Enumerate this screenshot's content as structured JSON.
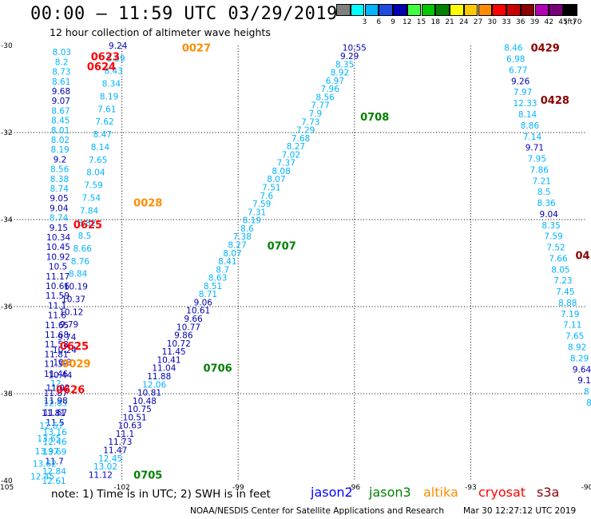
{
  "header": {
    "title": "00:00 – 11:59 UTC 03/29/2019",
    "subtitle": "12 hour collection of altimeter wave heights"
  },
  "legend": {
    "unit": "(ft)",
    "levels": [
      {
        "label": "",
        "color": "#808080"
      },
      {
        "label": "3",
        "color": "#00ffff"
      },
      {
        "label": "6",
        "color": "#00b4ff"
      },
      {
        "label": "9",
        "color": "#1c4ce0"
      },
      {
        "label": "12",
        "color": "#0000b4"
      },
      {
        "label": "15",
        "color": "#40ff40"
      },
      {
        "label": "18",
        "color": "#00c800"
      },
      {
        "label": "21",
        "color": "#008000"
      },
      {
        "label": "24",
        "color": "#ffff00"
      },
      {
        "label": "27",
        "color": "#ffc800"
      },
      {
        "label": "30",
        "color": "#ff8c00"
      },
      {
        "label": "33",
        "color": "#ff0000"
      },
      {
        "label": "36",
        "color": "#c80000"
      },
      {
        "label": "39",
        "color": "#8c0000"
      },
      {
        "label": "42",
        "color": "#b400b4"
      },
      {
        "label": "45",
        "color": "#780078"
      },
      {
        "label": "70",
        "color": "#000000"
      }
    ]
  },
  "map": {
    "lon_ticks": [
      "-105",
      "-102",
      "-99",
      "-96",
      "-93",
      "-90"
    ],
    "lat_ticks": [
      "-30",
      "-32",
      "-34",
      "-36",
      "-38",
      "-40"
    ],
    "lon_range": [
      -105,
      -90
    ],
    "lat_range": [
      -40,
      -30
    ],
    "pass_colors": {
      "cryo": "#ff0000",
      "altika": "#ff8c00",
      "j3": "#008000",
      "s3a": "#8c0000"
    },
    "pass_labels": [
      {
        "text": "0027",
        "lon": -100.45,
        "lat": -30.05,
        "kind": "altika"
      },
      {
        "text": "0623",
        "lon": -102.8,
        "lat": -30.25,
        "kind": "cryo"
      },
      {
        "text": "0624",
        "lon": -102.9,
        "lat": -30.48,
        "kind": "cryo"
      },
      {
        "text": "0028",
        "lon": -101.7,
        "lat": -33.61,
        "kind": "altika"
      },
      {
        "text": "0625",
        "lon": -103.25,
        "lat": -34.11,
        "kind": "cryo"
      },
      {
        "text": "0625",
        "lon": -103.6,
        "lat": -36.9,
        "kind": "cryo"
      },
      {
        "text": "0029",
        "lon": -103.55,
        "lat": -37.3,
        "kind": "altika"
      },
      {
        "text": "0626",
        "lon": -103.7,
        "lat": -37.9,
        "kind": "cryo"
      },
      {
        "text": "0705",
        "lon": -101.7,
        "lat": -39.86,
        "kind": "j3"
      },
      {
        "text": "0706",
        "lon": -99.9,
        "lat": -37.4,
        "kind": "j3"
      },
      {
        "text": "0707",
        "lon": -98.25,
        "lat": -34.6,
        "kind": "j3"
      },
      {
        "text": "0708",
        "lon": -95.85,
        "lat": -31.63,
        "kind": "j3"
      },
      {
        "text": "0429",
        "lon": -91.45,
        "lat": -30.05,
        "kind": "s3a"
      },
      {
        "text": "0428",
        "lon": -91.2,
        "lat": -31.25,
        "kind": "s3a"
      },
      {
        "text": "04",
        "lon": -90.3,
        "lat": -34.82,
        "kind": "s3a"
      }
    ],
    "tracks": [
      {
        "name": "cryosat-0624",
        "lon0": -103.55,
        "lat0": -30.15,
        "lon1": -103.75,
        "lat1": -40.0,
        "kind": "cryo",
        "values": [
          8.03,
          8.2,
          8.73,
          8.61,
          9.68,
          9.07,
          8.67,
          8.45,
          8.01,
          8.02,
          8.19,
          9.2,
          8.56,
          8.38,
          8.74,
          9.05,
          9.04,
          8.74,
          9.15,
          10.34,
          10.45,
          10.92,
          10.5,
          11.17,
          10.66,
          11.59,
          11.1,
          11.6,
          11.65,
          11.68,
          11.58,
          11.81,
          11.38,
          11.46,
          12.0,
          11.87,
          12.85,
          11.67,
          11.5,
          13.16,
          12.46,
          13.69,
          11.7,
          12.84,
          12.61
        ]
      },
      {
        "name": "cryosat-0625",
        "lon0": -102.1,
        "lat0": -30.0,
        "lon1": -104.05,
        "lat1": -39.9,
        "kind": "cryo",
        "values": [
          9.24,
          8.99,
          8.43,
          8.34,
          8.19,
          7.61,
          7.62,
          8.47,
          8.14,
          7.65,
          8.04,
          7.59,
          7.54,
          7.84,
          8.82,
          8.5,
          8.66,
          8.76,
          8.84,
          10.19,
          10.37,
          10.12,
          9.79,
          9.74,
          10.24,
          10.3,
          10.44,
          11.02,
          11.98,
          11.81,
          12.67,
          13.65,
          13.97,
          13.62,
          12.45
        ]
      },
      {
        "name": "jason3-0705",
        "lon0": -102.55,
        "lat0": -39.86,
        "lon1": -96.0,
        "lat1": -30.05,
        "kind": "j3",
        "values": [
          11.12,
          13.02,
          12.45,
          11.47,
          11.73,
          11.1,
          10.63,
          10.51,
          10.75,
          10.48,
          10.81,
          12.06,
          11.88,
          11.04,
          10.41,
          11.45,
          10.72,
          9.86,
          10.77,
          9.66,
          10.61,
          9.06,
          8.71,
          8.51,
          8.63,
          8.7,
          8.41,
          8.07,
          8.27,
          7.38,
          8.6,
          8.19,
          7.31,
          7.59,
          7.6,
          7.51,
          8.07,
          8.08,
          7.37,
          7.02,
          8.27,
          7.68,
          7.29,
          7.73,
          7.9,
          7.77,
          8.56,
          7.96,
          6.97,
          8.92,
          8.35,
          9.29,
          10.55
        ]
      },
      {
        "name": "s3a-0428",
        "lon0": -91.9,
        "lat0": -30.05,
        "lon1": -89.95,
        "lat1": -38.2,
        "kind": "s3a",
        "values": [
          8.46,
          6.98,
          6.77,
          9.26,
          7.97,
          12.33,
          8.14,
          8.86,
          7.14,
          9.71,
          7.95,
          7.86,
          7.21,
          8.5,
          8.36,
          9.04,
          8.35,
          7.59,
          7.52,
          7.66,
          8.05,
          7.23,
          7.45,
          8.88,
          7.19,
          7.11,
          7.65,
          8.92,
          8.29,
          9.64,
          9.1,
          8,
          8
        ]
      }
    ]
  },
  "footer": {
    "note": "note: 1) Time is in UTC; 2) SWH is in feet",
    "satellites": [
      {
        "name": "jason2",
        "color": "#0000ff"
      },
      {
        "name": "jason3",
        "color": "#008000"
      },
      {
        "name": "altika",
        "color": "#ff8c00"
      },
      {
        "name": "cryosat",
        "color": "#ff0000"
      },
      {
        "name": "s3a",
        "color": "#8c0000"
      }
    ],
    "credit": "NOAA/NESDIS Center for Satellite Applications and Research",
    "timestamp": "Mar 30 12:27:12 UTC 2019"
  }
}
